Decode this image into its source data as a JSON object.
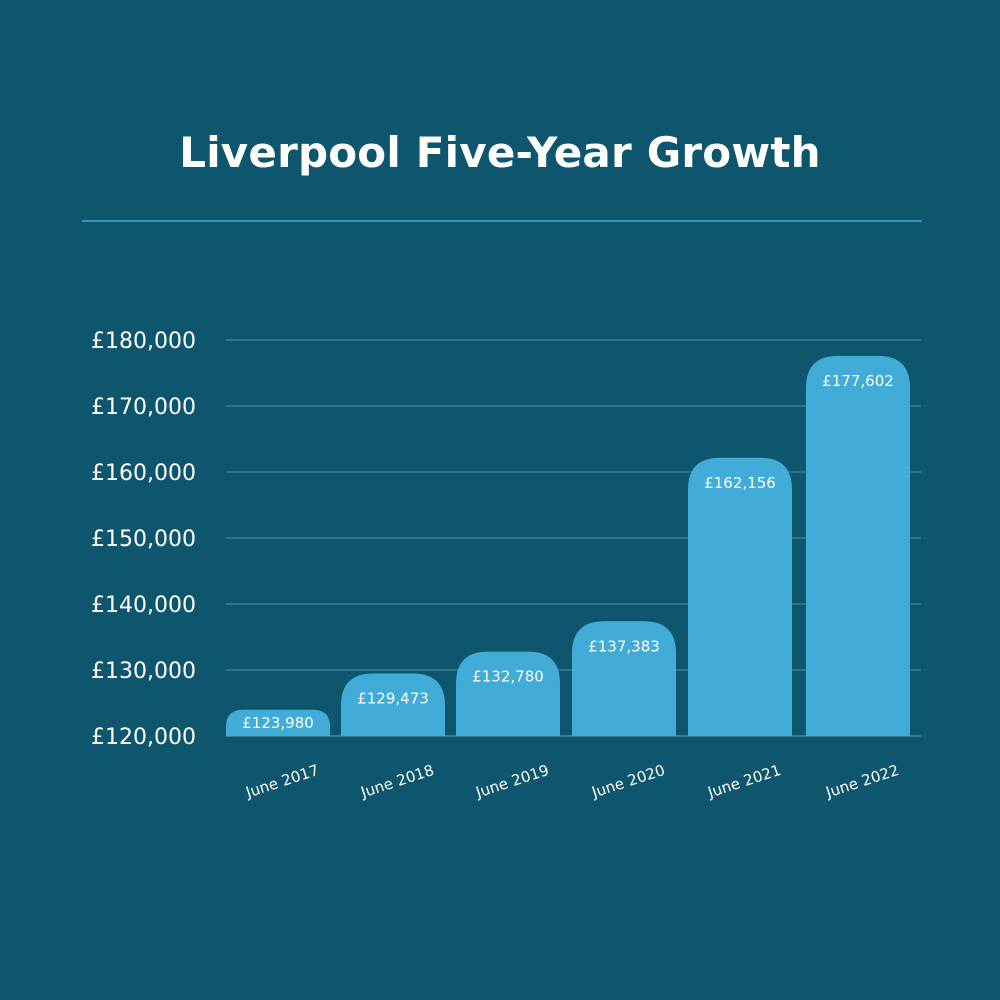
{
  "title": "Liverpool Five-Year Growth",
  "colors": {
    "background": "#0d566d",
    "bar": "#42acd8",
    "grid": "#2f7389",
    "rule": "#2e97b5",
    "text": "#ffffff"
  },
  "chart_data": {
    "type": "bar",
    "title": "Liverpool Five-Year Growth",
    "xlabel": "",
    "ylabel": "",
    "categories": [
      "June 2017",
      "June 2018",
      "June 2019",
      "June 2020",
      "June 2021",
      "June 2022"
    ],
    "values": [
      123980,
      129473,
      132780,
      137383,
      162156,
      177602
    ],
    "value_labels": [
      "£123,980",
      "£129,473",
      "£132,780",
      "£137,383",
      "£162,156",
      "£177,602"
    ],
    "ylim": [
      120000,
      180000
    ],
    "yticks": [
      120000,
      130000,
      140000,
      150000,
      160000,
      170000,
      180000
    ],
    "ytick_labels": [
      "£120,000",
      "£130,000",
      "£140,000",
      "£150,000",
      "£160,000",
      "£170,000",
      "£180,000"
    ],
    "grid": true,
    "legend": "none"
  }
}
